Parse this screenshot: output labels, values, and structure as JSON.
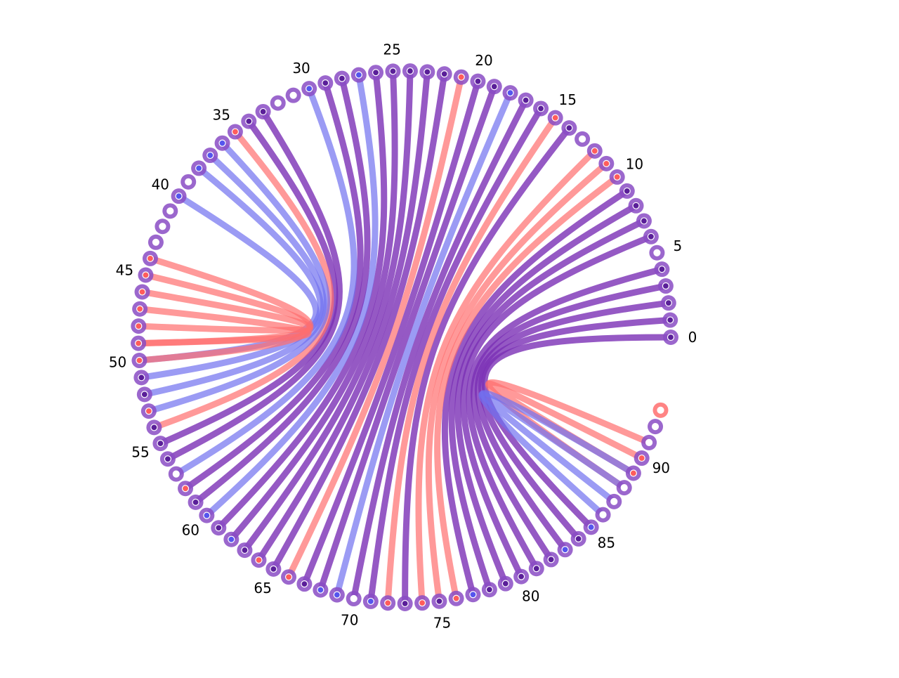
{
  "diagram": {
    "kind": "arc-diagram",
    "node_count": 94,
    "tick_labels": [
      "0",
      "5",
      "10",
      "15",
      "20",
      "25",
      "30",
      "35",
      "40",
      "45",
      "50",
      "55",
      "60",
      "65",
      "70",
      "75",
      "80",
      "85",
      "90"
    ],
    "colors": {
      "purple": "#7b2fb5",
      "blue": "#7070f0",
      "red": "#ff6e6e",
      "node_ring": "#8a4cc4",
      "node_core_blue": "#5555ee",
      "node_core_red": "#ff5c5c",
      "node_core_purple": "#5a1f99"
    },
    "links": [
      {
        "a": 0,
        "b": 85,
        "color": "purple"
      },
      {
        "a": 1,
        "b": 84,
        "color": "purple"
      },
      {
        "a": 2,
        "b": 83,
        "color": "purple"
      },
      {
        "a": 3,
        "b": 82,
        "color": "purple"
      },
      {
        "a": 4,
        "b": 81,
        "color": "purple"
      },
      {
        "a": 6,
        "b": 80,
        "color": "purple"
      },
      {
        "a": 7,
        "b": 79,
        "color": "purple"
      },
      {
        "a": 8,
        "b": 78,
        "color": "purple"
      },
      {
        "a": 9,
        "b": 77,
        "color": "purple"
      },
      {
        "a": 10,
        "b": 76,
        "color": "red"
      },
      {
        "a": 11,
        "b": 75,
        "color": "red"
      },
      {
        "a": 12,
        "b": 74,
        "color": "red"
      },
      {
        "a": 14,
        "b": 73,
        "color": "purple"
      },
      {
        "a": 15,
        "b": 72,
        "color": "red"
      },
      {
        "a": 16,
        "b": 71,
        "color": "purple"
      },
      {
        "a": 17,
        "b": 70,
        "color": "purple"
      },
      {
        "a": 18,
        "b": 69,
        "color": "blue"
      },
      {
        "a": 19,
        "b": 68,
        "color": "purple"
      },
      {
        "a": 20,
        "b": 67,
        "color": "purple"
      },
      {
        "a": 21,
        "b": 66,
        "color": "red"
      },
      {
        "a": 22,
        "b": 65,
        "color": "purple"
      },
      {
        "a": 23,
        "b": 64,
        "color": "purple"
      },
      {
        "a": 24,
        "b": 63,
        "color": "purple"
      },
      {
        "a": 25,
        "b": 62,
        "color": "purple"
      },
      {
        "a": 26,
        "b": 61,
        "color": "purple"
      },
      {
        "a": 27,
        "b": 60,
        "color": "blue"
      },
      {
        "a": 28,
        "b": 59,
        "color": "purple"
      },
      {
        "a": 29,
        "b": 58,
        "color": "purple"
      },
      {
        "a": 30,
        "b": 57,
        "color": "blue"
      },
      {
        "a": 33,
        "b": 56,
        "color": "purple"
      },
      {
        "a": 34,
        "b": 55,
        "color": "purple"
      },
      {
        "a": 35,
        "b": 54,
        "color": "red"
      },
      {
        "a": 36,
        "b": 53,
        "color": "blue"
      },
      {
        "a": 37,
        "b": 52,
        "color": "blue"
      },
      {
        "a": 38,
        "b": 51,
        "color": "blue"
      },
      {
        "a": 40,
        "b": 50,
        "color": "blue"
      },
      {
        "a": 45,
        "b": 49,
        "color": "red"
      },
      {
        "a": 46,
        "b": 48,
        "color": "red"
      },
      {
        "a": 47,
        "b": 49,
        "color": "red"
      },
      {
        "a": 44,
        "b": 50,
        "color": "red"
      },
      {
        "a": 89,
        "b": 90,
        "color": "red"
      },
      {
        "a": 88,
        "b": 91,
        "color": "red"
      },
      {
        "a": 86,
        "b": 89,
        "color": "blue"
      },
      {
        "a": 87,
        "b": 88,
        "color": "blue"
      }
    ],
    "red_nodes": [
      10,
      11,
      12,
      15,
      21,
      35,
      44,
      45,
      46,
      47,
      48,
      49,
      50,
      53,
      58,
      64,
      66,
      72,
      74,
      76,
      89,
      90,
      93
    ],
    "blue_nodes": [
      18,
      27,
      30,
      36,
      37,
      38,
      40,
      60,
      62,
      68,
      69,
      71,
      77,
      83,
      85
    ],
    "empty_nodes": [
      5,
      13,
      31,
      32,
      39,
      41,
      42,
      43,
      57,
      70,
      86,
      87,
      88,
      91,
      92,
      93
    ]
  }
}
